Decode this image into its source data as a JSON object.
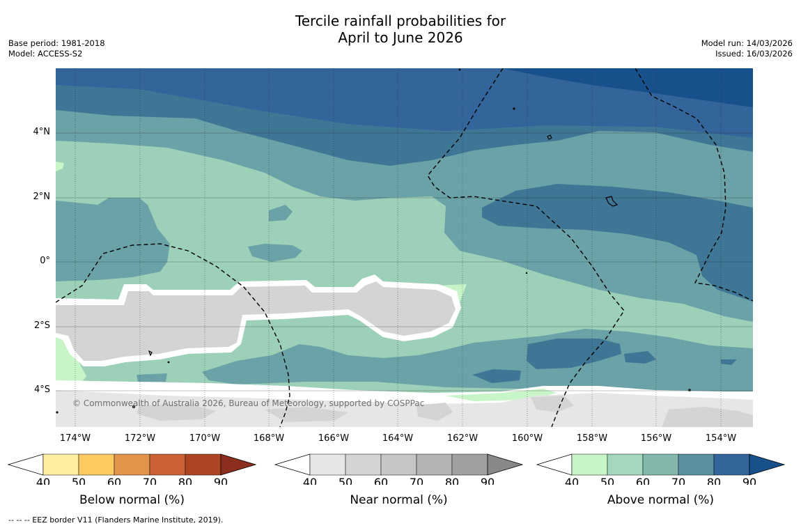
{
  "title": {
    "line1": "Tercile rainfall probabilities for",
    "line2": "April to June 2026"
  },
  "meta": {
    "base_period": "Base period: 1981-2018",
    "model": "Model: ACCESS-S2",
    "model_run": "Model run: 14/03/2026",
    "issued": "Issued: 16/03/2026"
  },
  "map": {
    "credit": "© Commonwealth of Australia 2026, Bureau of Meteorology, supported by COSPPac",
    "y_ticks": [
      "4°N",
      "2°N",
      "0°",
      "2°S",
      "4°S"
    ],
    "x_ticks": [
      "174°W",
      "172°W",
      "170°W",
      "168°W",
      "166°W",
      "164°W",
      "162°W",
      "160°W",
      "158°W",
      "156°W",
      "154°W"
    ],
    "colors": {
      "above_70": "#6aa2a7",
      "above_80": "#3f7696",
      "above_90": "#17508a",
      "above_60": "#9dd0b8",
      "above_50": "#c8f5c8",
      "near_60": "#d4d4d4",
      "near_50": "#e6e6e6",
      "land": "#000000"
    }
  },
  "colorbars": {
    "ticks": [
      "40",
      "50",
      "60",
      "70",
      "80",
      "90"
    ],
    "below": {
      "label": "Below normal (%)",
      "colors": [
        "#ffffff",
        "#ffeda0",
        "#fecb63",
        "#e1944a",
        "#cc6233",
        "#ae4624",
        "#8c2e1d"
      ]
    },
    "near": {
      "label": "Near normal (%)",
      "colors": [
        "#ffffff",
        "#e6e6e6",
        "#d4d4d4",
        "#c6c6c6",
        "#b4b4b4",
        "#a0a0a0",
        "#888888"
      ]
    },
    "above": {
      "label": "Above normal (%)",
      "colors": [
        "#ffffff",
        "#c8f5c8",
        "#a4d8be",
        "#83b7ac",
        "#5b919f",
        "#33649a",
        "#17508a"
      ]
    }
  },
  "footnote": "--  --  -- EEZ border V11 (Flanders Marine Institute, 2019)."
}
